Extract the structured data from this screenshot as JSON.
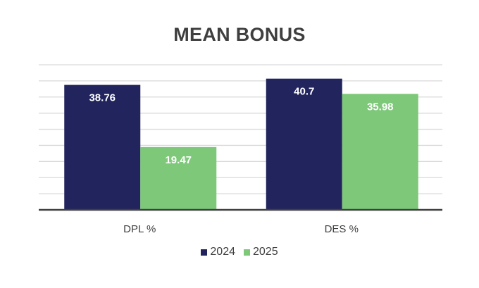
{
  "chart_data": {
    "type": "bar",
    "title": "MEAN BONUS",
    "categories": [
      "DPL %",
      "DES %"
    ],
    "series": [
      {
        "name": "2024",
        "values": [
          38.76,
          40.7
        ],
        "color": "#22245e"
      },
      {
        "name": "2025",
        "values": [
          19.47,
          35.98
        ],
        "color": "#7ec87a"
      }
    ],
    "xlabel": "",
    "ylabel": "",
    "ylim": [
      0,
      45
    ],
    "ytick_step": 5,
    "grid": true,
    "show_y_tick_labels": false,
    "legend_position": "bottom",
    "data_labels": true
  }
}
